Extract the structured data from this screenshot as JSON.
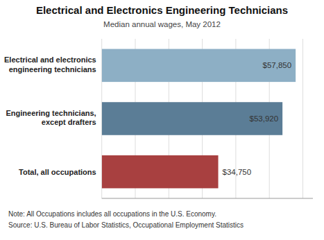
{
  "chart_data": {
    "type": "bar",
    "orientation": "horizontal",
    "title": "Electrical and Electronics Engineering Technicians",
    "subtitle": "Median annual wages, May 2012",
    "categories": [
      "Electrical and electronics\nengineering technicians",
      "Engineering technicians,\nexcept drafters",
      "Total, all occupations"
    ],
    "values": [
      57850,
      53920,
      34750
    ],
    "value_labels": [
      "$57,850",
      "$53,920",
      "$34,750"
    ],
    "data_labels": true,
    "colors": [
      "#8DAFC5",
      "#5B7D96",
      "#A84040"
    ],
    "xlim": [
      0,
      63000
    ],
    "xticks": [
      0,
      10000,
      20000,
      30000,
      40000,
      50000,
      60000
    ],
    "tick_labels": "y",
    "grid": true,
    "annotations": [
      "Note: All Occupations includes all occupations in the U.S. Economy.",
      "Source: U.S. Bureau of Labor Statistics, Occupational Employment Statistics"
    ]
  }
}
